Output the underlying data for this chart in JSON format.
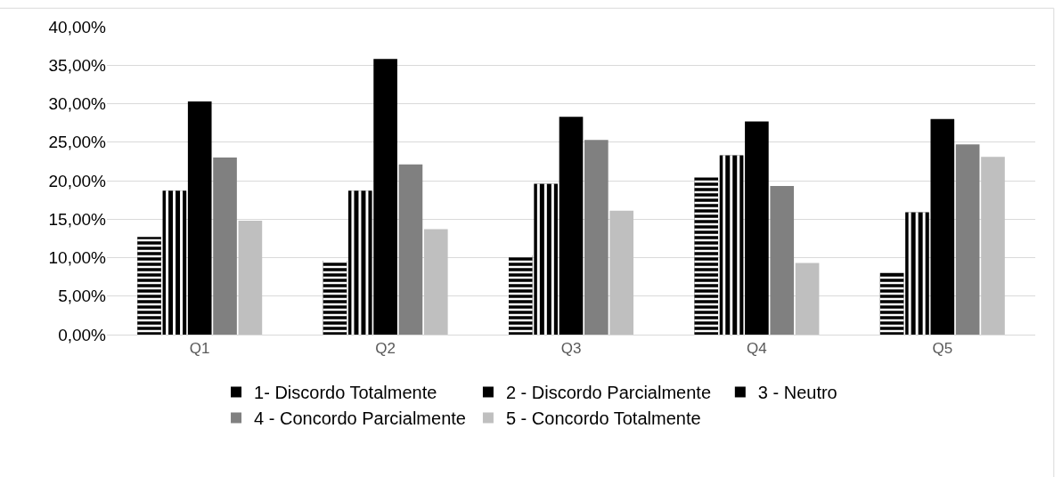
{
  "chart_data": {
    "type": "bar",
    "categories": [
      "Q1",
      "Q2",
      "Q3",
      "Q4",
      "Q5"
    ],
    "series": [
      {
        "name": "1- Discordo Totalmente",
        "color": "#000000",
        "values": [
          12.7,
          9.6,
          10.3,
          20.4,
          8.0
        ]
      },
      {
        "name": "2 - Discordo Parcialmente",
        "color": "#000000",
        "values": [
          18.7,
          18.7,
          19.6,
          23.3,
          15.9
        ]
      },
      {
        "name": "3 - Neutro",
        "color": "#000000",
        "values": [
          30.3,
          35.8,
          28.3,
          27.7,
          28.0
        ]
      },
      {
        "name": "4 - Concordo Parcialmente",
        "color": "#808080",
        "values": [
          23.0,
          22.1,
          25.3,
          19.3,
          24.7
        ]
      },
      {
        "name": "5 - Concordo Totalmente",
        "color": "#bfbfbf",
        "values": [
          14.8,
          13.7,
          16.1,
          9.3,
          23.1
        ]
      }
    ],
    "ylim": [
      0,
      40
    ],
    "yticks": [
      {
        "value": 0,
        "label": "0,00%"
      },
      {
        "value": 5,
        "label": "5,00%"
      },
      {
        "value": 10,
        "label": "10,00%"
      },
      {
        "value": 15,
        "label": "15,00%"
      },
      {
        "value": 20,
        "label": "20,00%"
      },
      {
        "value": 25,
        "label": "25,00%"
      },
      {
        "value": 30,
        "label": "30,00%"
      },
      {
        "value": 35,
        "label": "35,00%"
      },
      {
        "value": 40,
        "label": "40,00%"
      }
    ],
    "grid": "y",
    "legend": "bottom"
  }
}
